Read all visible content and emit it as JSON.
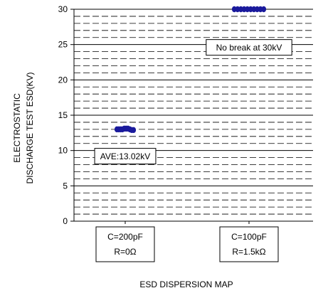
{
  "chart_data": {
    "type": "scatter",
    "title": "",
    "xlabel": "ESD DISPERSION MAP",
    "ylabel_lines": [
      "ELECTROSTATIC",
      "DISCHARGE TEST ESD(KV)"
    ],
    "ylim": [
      0,
      30
    ],
    "yticks": [
      0,
      5,
      10,
      15,
      20,
      25,
      30
    ],
    "minor_grid_step": 1,
    "grid": true,
    "marker_color": "#1a1a9c",
    "categories": [
      {
        "line1": "C=200pF",
        "line2": "R=0Ω"
      },
      {
        "line1": "C=100pF",
        "line2": "R=1.5kΩ"
      }
    ],
    "series": [
      {
        "category_index": 0,
        "values": [
          13.0,
          13.0,
          13.0,
          13.0,
          13.1,
          13.1,
          13.1,
          13.0,
          12.9,
          12.9
        ]
      },
      {
        "category_index": 1,
        "values": [
          30,
          30,
          30,
          30,
          30,
          30,
          30,
          30,
          30,
          30
        ]
      }
    ],
    "annotations": [
      {
        "text": "AVE:13.02kV",
        "category_index": 0,
        "y": 9.2
      },
      {
        "text": "No break at 30kV",
        "category_index": 1,
        "y": 24.6
      }
    ]
  }
}
